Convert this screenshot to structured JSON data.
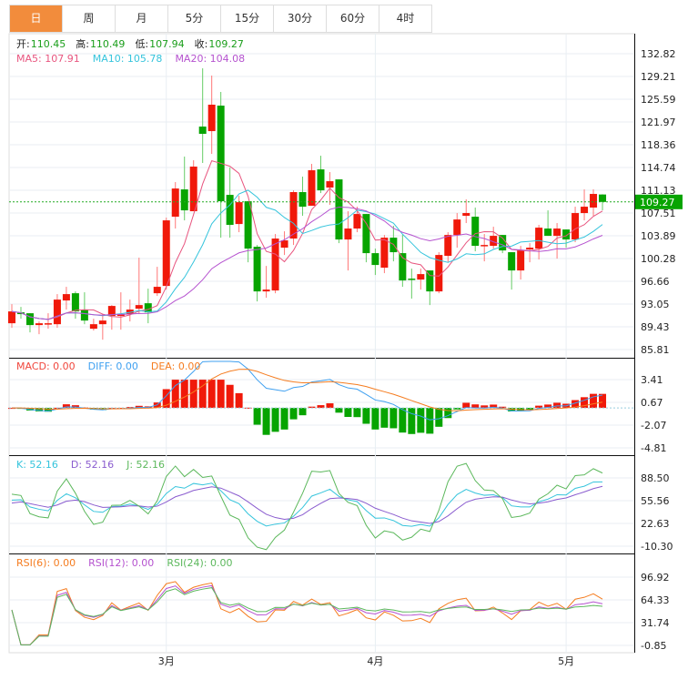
{
  "tabs": [
    {
      "label": "日",
      "active": true
    },
    {
      "label": "周"
    },
    {
      "label": "月"
    },
    {
      "label": "5分"
    },
    {
      "label": "15分"
    },
    {
      "label": "30分"
    },
    {
      "label": "60分"
    },
    {
      "label": "4时"
    }
  ],
  "ohlc_info": [
    {
      "label": "开:",
      "value": "110.45"
    },
    {
      "label": "高:",
      "value": "110.49"
    },
    {
      "label": "低:",
      "value": "107.94"
    },
    {
      "label": "收:",
      "value": "109.27"
    }
  ],
  "ma_info": [
    {
      "text": "MA5: 107.91",
      "color": "#e8557f"
    },
    {
      "text": "MA10: 105.78",
      "color": "#35c4dc"
    },
    {
      "text": "MA20: 104.08",
      "color": "#b552cf"
    }
  ],
  "macd_info": [
    {
      "text": "MACD: 0.00",
      "color": "#f0463c"
    },
    {
      "text": "DIFF: 0.00",
      "color": "#3fa0f0"
    },
    {
      "text": "DEA: 0.00",
      "color": "#f57c1f"
    }
  ],
  "kdj_info": [
    {
      "text": "K: 52.16",
      "color": "#35c4dc"
    },
    {
      "text": "D: 52.16",
      "color": "#8a5ccf"
    },
    {
      "text": "J: 52.16",
      "color": "#5cb85c"
    }
  ],
  "rsi_info": [
    {
      "text": "RSI(6): 0.00",
      "color": "#f57c1f"
    },
    {
      "text": "RSI(12): 0.00",
      "color": "#b552cf"
    },
    {
      "text": "RSI(24): 0.00",
      "color": "#5cb85c"
    }
  ],
  "current_price": "109.27",
  "colors": {
    "up": "#f0190a",
    "down": "#07a400",
    "accent": "#f28c3c"
  },
  "chart_data": {
    "type": "candlestick",
    "x_labels": [
      {
        "index": 17,
        "label": "3月"
      },
      {
        "index": 40,
        "label": "4月"
      },
      {
        "index": 61,
        "label": "5月"
      }
    ],
    "main_ticks": [
      "132.82",
      "129.21",
      "125.59",
      "121.97",
      "118.36",
      "114.74",
      "111.13",
      "107.51",
      "103.89",
      "100.28",
      "96.66",
      "93.05",
      "89.43",
      "85.81"
    ],
    "main_range": [
      85.81,
      132.82
    ],
    "macd_ticks": [
      "3.41",
      "0.67",
      "-2.07",
      "-4.81"
    ],
    "macd_range": [
      -4.81,
      3.41
    ],
    "kdj_ticks": [
      "88.50",
      "55.56",
      "22.63",
      "-10.30"
    ],
    "kdj_range": [
      -10.3,
      88.5
    ],
    "rsi_ticks": [
      "96.92",
      "64.33",
      "31.74",
      "-0.85"
    ],
    "rsi_range": [
      -0.85,
      96.92
    ],
    "ohlc": [
      [
        89.99,
        93.03,
        89.27,
        91.87
      ],
      [
        91.72,
        92.59,
        90.71,
        91.44
      ],
      [
        91.58,
        91.58,
        88.54,
        89.7
      ],
      [
        89.7,
        90.28,
        88.25,
        89.99
      ],
      [
        89.84,
        91.58,
        89.12,
        89.99
      ],
      [
        89.84,
        94.62,
        89.27,
        93.75
      ],
      [
        93.61,
        95.78,
        92.16,
        94.62
      ],
      [
        94.76,
        95.05,
        90.71,
        91.87
      ],
      [
        92.16,
        94.91,
        89.84,
        90.42
      ],
      [
        89.12,
        90.71,
        88.83,
        89.84
      ],
      [
        89.84,
        91.44,
        87.38,
        90.42
      ],
      [
        91.15,
        92.88,
        88.97,
        92.74
      ],
      [
        91.15,
        94.91,
        88.97,
        91.44
      ],
      [
        91.44,
        93.75,
        90.28,
        92.16
      ],
      [
        92.3,
        100.41,
        91.44,
        92.88
      ],
      [
        93.17,
        95.49,
        89.99,
        91.72
      ],
      [
        94.76,
        98.96,
        94.33,
        95.78
      ],
      [
        95.92,
        106.77,
        95.34,
        106.34
      ],
      [
        106.92,
        112.42,
        105.04,
        111.4
      ],
      [
        111.26,
        116.47,
        106.34,
        107.93
      ],
      [
        107.79,
        115.89,
        107.79,
        114.88
      ],
      [
        121.24,
        130.5,
        115.46,
        120.09
      ],
      [
        120.52,
        129.35,
        116.9,
        124.72
      ],
      [
        124.57,
        126.74,
        103.59,
        109.38
      ],
      [
        110.39,
        114.73,
        103.59,
        105.62
      ],
      [
        105.76,
        110.25,
        104.46,
        109.23
      ],
      [
        109.38,
        109.38,
        99.68,
        101.85
      ],
      [
        102.14,
        102.43,
        93.46,
        95.05
      ],
      [
        95.05,
        99.1,
        94.04,
        95.34
      ],
      [
        95.2,
        104.17,
        94.76,
        103.45
      ],
      [
        102.0,
        104.6,
        100.84,
        103.16
      ],
      [
        103.45,
        111.11,
        102.43,
        110.83
      ],
      [
        110.83,
        113.29,
        107.06,
        108.51
      ],
      [
        108.66,
        115.31,
        108.66,
        114.3
      ],
      [
        114.44,
        116.61,
        110.68,
        111.11
      ],
      [
        111.55,
        114.01,
        108.8,
        112.56
      ],
      [
        112.85,
        112.85,
        102.72,
        103.3
      ],
      [
        103.3,
        107.79,
        98.38,
        105.04
      ],
      [
        105.04,
        108.51,
        104.46,
        107.35
      ],
      [
        107.35,
        107.35,
        99.68,
        101.13
      ],
      [
        101.13,
        101.85,
        97.66,
        99.25
      ],
      [
        98.82,
        104.02,
        97.95,
        103.59
      ],
      [
        103.59,
        105.47,
        99.83,
        101.28
      ],
      [
        101.13,
        104.02,
        95.78,
        96.79
      ],
      [
        97.08,
        98.67,
        93.9,
        96.93
      ],
      [
        96.93,
        98.67,
        95.34,
        97.8
      ],
      [
        98.38,
        98.38,
        92.88,
        95.05
      ],
      [
        95.05,
        101.28,
        94.76,
        100.84
      ],
      [
        100.7,
        104.46,
        99.68,
        104.02
      ],
      [
        104.02,
        107.5,
        102.0,
        106.48
      ],
      [
        107.06,
        109.67,
        105.91,
        107.5
      ],
      [
        106.92,
        108.37,
        101.42,
        102.29
      ],
      [
        102.29,
        104.17,
        99.83,
        102.43
      ],
      [
        102.29,
        105.33,
        101.85,
        103.88
      ],
      [
        104.02,
        104.02,
        101.13,
        101.56
      ],
      [
        101.28,
        101.28,
        95.34,
        98.38
      ],
      [
        98.38,
        102.29,
        96.93,
        101.56
      ],
      [
        101.71,
        102.72,
        99.68,
        102.0
      ],
      [
        101.85,
        105.62,
        100.12,
        105.18
      ],
      [
        105.04,
        107.93,
        103.88,
        103.88
      ],
      [
        103.88,
        105.91,
        100.26,
        105.04
      ],
      [
        104.89,
        104.89,
        102.0,
        103.3
      ],
      [
        103.3,
        108.51,
        102.87,
        107.5
      ],
      [
        107.5,
        111.26,
        106.34,
        108.51
      ],
      [
        108.37,
        111.26,
        107.06,
        110.54
      ],
      [
        110.45,
        110.49,
        107.94,
        109.27
      ]
    ]
  }
}
